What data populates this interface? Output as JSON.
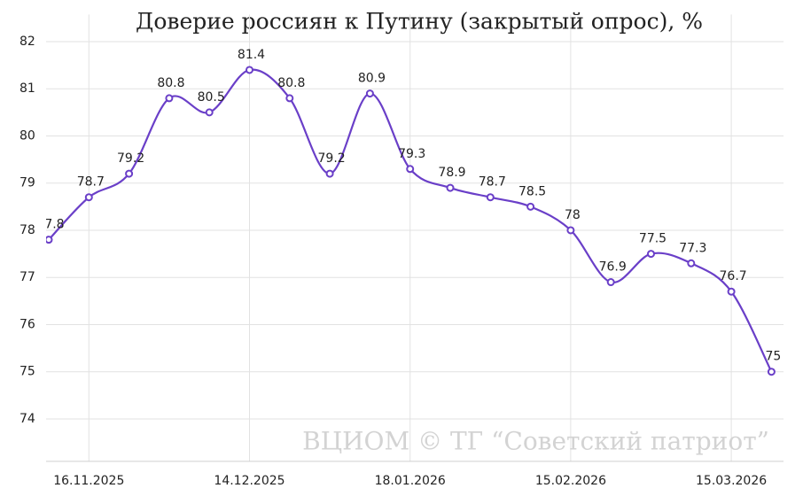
{
  "chart_data": {
    "type": "line",
    "title": "Доверие россиян к Путину (закрытый опрос), %",
    "annotation": "ВЦИОМ © ТГ “Советский патриот”",
    "categories": [
      null,
      "16.11.2025",
      null,
      null,
      null,
      "14.12.2025",
      null,
      null,
      null,
      "18.01.2026",
      null,
      null,
      null,
      "15.02.2026",
      null,
      null,
      null,
      "15.03.2026",
      null
    ],
    "series": [
      {
        "name": "Доверие",
        "color": "#6a3fc8",
        "values": [
          77.8,
          78.7,
          79.2,
          80.8,
          80.5,
          81.4,
          80.8,
          79.2,
          80.9,
          79.3,
          78.9,
          78.7,
          78.5,
          78,
          76.9,
          77.5,
          77.3,
          76.7,
          75
        ]
      }
    ],
    "ylim": [
      73.1,
      82.2
    ],
    "yticks": [
      74,
      75,
      76,
      77,
      78,
      79,
      80,
      81,
      82
    ],
    "grid": true
  }
}
